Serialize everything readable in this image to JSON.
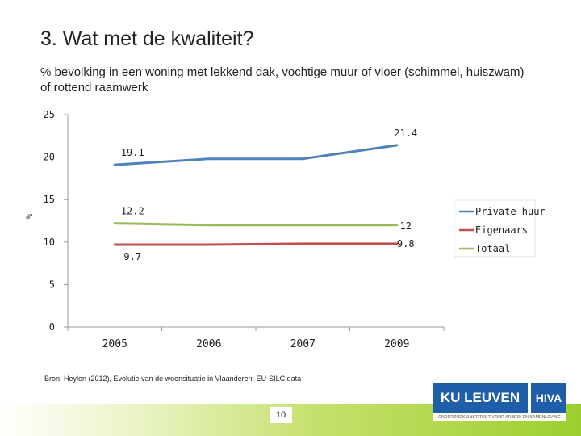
{
  "slide": {
    "title": "3. Wat met de kwaliteit?",
    "subtitle": "% bevolking in een woning met lekkend dak, vochtige muur of vloer (schimmel, huiszwam) of rottend raamwerk",
    "source": "Bron: Heylen (2012), Evolutie van de woonsituatie in Vlaanderen. EU-SILC data",
    "page_number": "10",
    "logo_text": "KU LEUVEN",
    "logo_text_2": "HIVA",
    "logo_subtext": "ONDERZOEKSINSTITUUT VOOR ARBEID EN SAMENLEVING"
  },
  "chart_data": {
    "type": "line",
    "title": "",
    "xlabel": "",
    "ylabel": "%",
    "categories": [
      "2005",
      "2006",
      "2007",
      "2009"
    ],
    "ylim": [
      0,
      25
    ],
    "yticks": [
      "0",
      "5",
      "10",
      "15",
      "20",
      "25"
    ],
    "grid": false,
    "legend": "right",
    "series": [
      {
        "name": "Private huur",
        "color": "#4f81bd",
        "values": [
          19.1,
          19.8,
          19.8,
          21.4
        ]
      },
      {
        "name": "Eigenaars",
        "color": "#c0504d",
        "values": [
          9.7,
          9.7,
          9.8,
          9.8
        ]
      },
      {
        "name": "Totaal",
        "color": "#9bbb59",
        "values": [
          12.2,
          12.0,
          12.0,
          12.0
        ]
      }
    ],
    "annotations": [
      {
        "series": 0,
        "index": 0,
        "text": "19.1"
      },
      {
        "series": 0,
        "index": 3,
        "text": "21.4"
      },
      {
        "series": 2,
        "index": 0,
        "text": "12.2"
      },
      {
        "series": 2,
        "index": 3,
        "text": "12"
      },
      {
        "series": 1,
        "index": 0,
        "text": "9.7"
      },
      {
        "series": 1,
        "index": 3,
        "text": "9.8"
      }
    ]
  }
}
